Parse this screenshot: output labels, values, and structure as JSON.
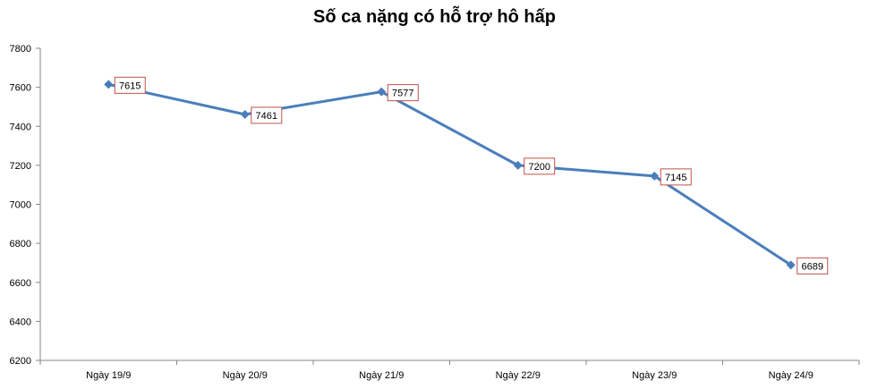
{
  "chart_data": {
    "type": "line",
    "title": "Số ca nặng có hỗ trợ hô hấp",
    "xlabel": "",
    "ylabel": "",
    "categories": [
      "Ngày 19/9",
      "Ngày 20/9",
      "Ngày 21/9",
      "Ngày 22/9",
      "Ngày 23/9",
      "Ngày 24/9"
    ],
    "series": [
      {
        "values": [
          7615,
          7461,
          7577,
          7200,
          7145,
          6689
        ]
      }
    ],
    "ylim": [
      6200,
      7800
    ],
    "yticks": [
      6200,
      6400,
      6600,
      6800,
      7000,
      7200,
      7400,
      7600,
      7800
    ],
    "grid": false,
    "legend": "none",
    "data_labels": true,
    "colors": {
      "line": "#4a7ebb",
      "marker": "#4a7ebb",
      "label_border": "#c0504d",
      "label_fill": "#ffffff",
      "axis": "#868686"
    }
  }
}
